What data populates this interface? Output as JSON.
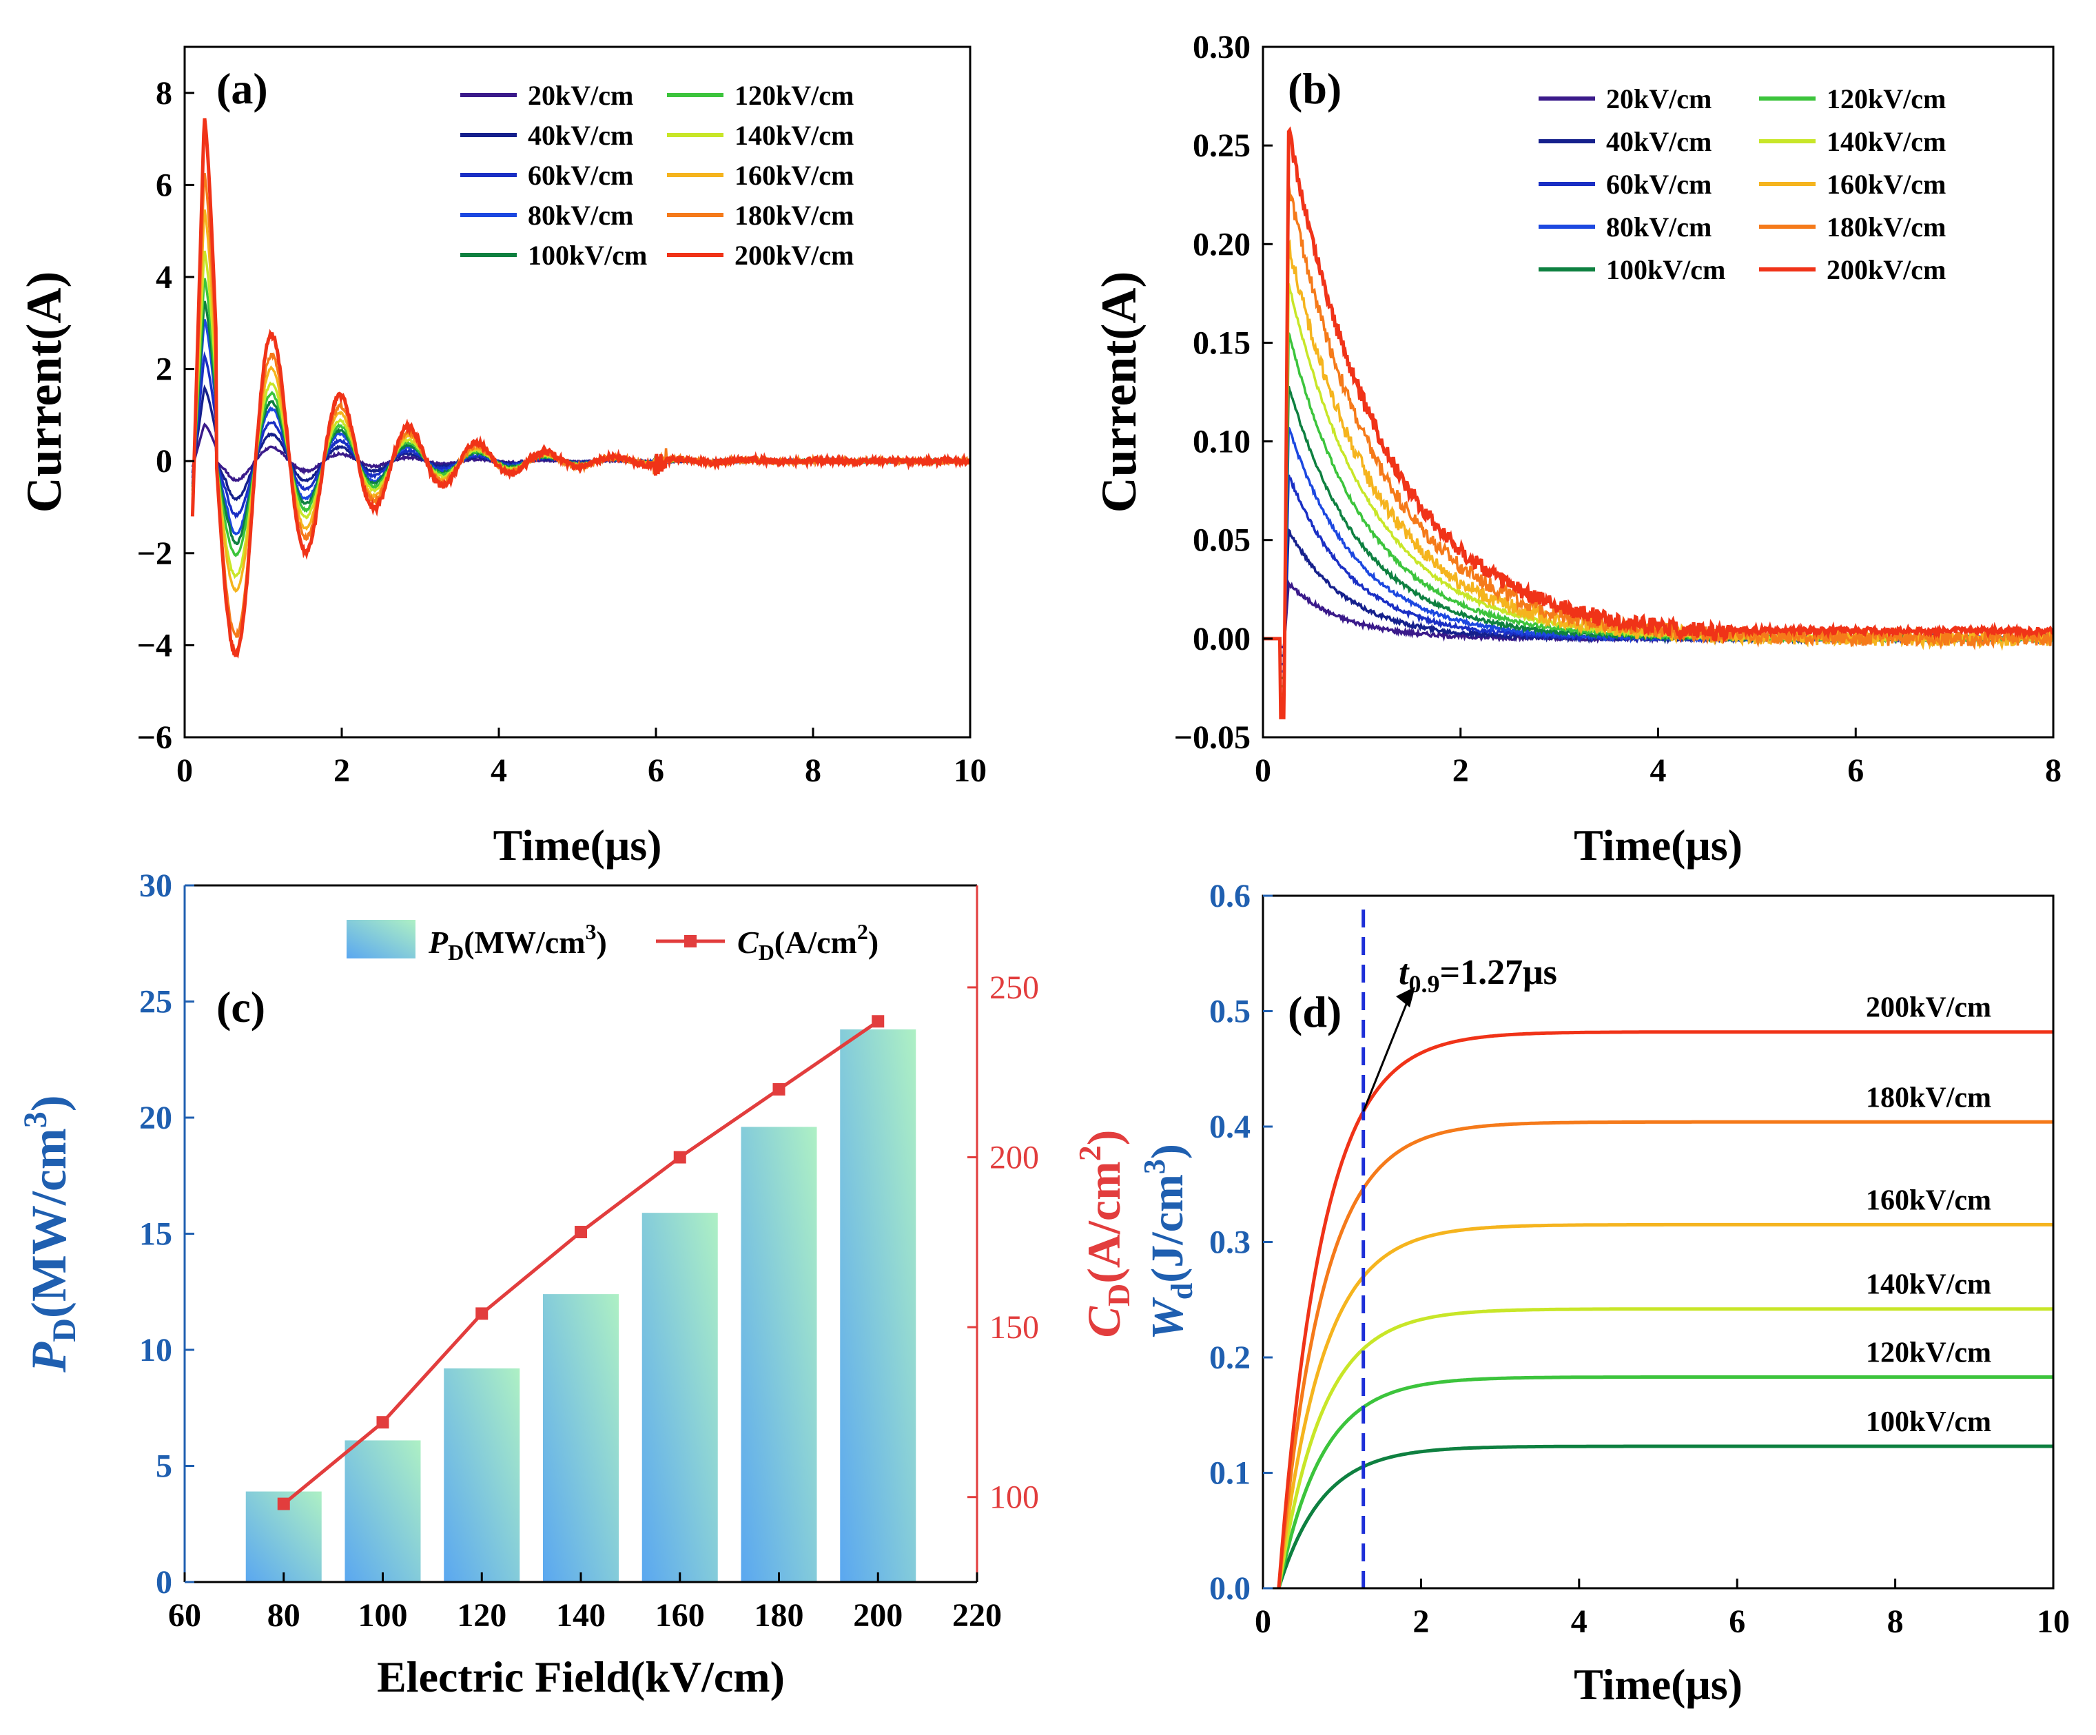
{
  "figure": {
    "colors": {
      "20": "#3a1a8a",
      "40": "#15208c",
      "60": "#1a2fc4",
      "80": "#1c48e0",
      "100": "#0e8040",
      "120": "#3cc43c",
      "140": "#c8e628",
      "160": "#f5b41e",
      "180": "#f57a1a",
      "200": "#f03318",
      "blue_axis": "#1f5fb0",
      "red_axis": "#e23d3d",
      "black": "#000000"
    }
  },
  "chart_data": [
    {
      "id": "a",
      "panel_label": "(a)",
      "type": "line",
      "xlabel": "Time(μs)",
      "ylabel": "Current(A)",
      "xlim": [
        0,
        10
      ],
      "ylim": [
        -6,
        9
      ],
      "xticks": [
        0,
        2,
        4,
        6,
        8,
        10
      ],
      "xtick_labels": [
        "0",
        "2",
        "4",
        "6",
        "8",
        "10"
      ],
      "yticks": [
        -6,
        -4,
        -2,
        0,
        2,
        4,
        6,
        8
      ],
      "ytick_labels": [
        "−6",
        "−4",
        "−2",
        "0",
        "2",
        "4",
        "6",
        "8"
      ],
      "legend": [
        "20kV/cm",
        "40kV/cm",
        "60kV/cm",
        "80kV/cm",
        "100kV/cm",
        "120kV/cm",
        "140kV/cm",
        "160kV/cm",
        "180kV/cm",
        "200kV/cm"
      ],
      "series": [
        {
          "name": "20kV/cm",
          "field": 20,
          "peak": 0.8,
          "trough": -0.3
        },
        {
          "name": "40kV/cm",
          "field": 40,
          "peak": 1.6,
          "trough": -0.6
        },
        {
          "name": "60kV/cm",
          "field": 60,
          "peak": 2.3,
          "trough": -0.9
        },
        {
          "name": "80kV/cm",
          "field": 80,
          "peak": 3.1,
          "trough": -1.3
        },
        {
          "name": "100kV/cm",
          "field": 100,
          "peak": 3.5,
          "trough": -1.6
        },
        {
          "name": "120kV/cm",
          "field": 120,
          "peak": 4.0,
          "trough": -2.0
        },
        {
          "name": "140kV/cm",
          "field": 140,
          "peak": 4.6,
          "trough": -2.5
        },
        {
          "name": "160kV/cm",
          "field": 160,
          "peak": 5.5,
          "trough": -2.8
        },
        {
          "name": "180kV/cm",
          "field": 180,
          "peak": 6.3,
          "trough": -3.8
        },
        {
          "name": "200kV/cm",
          "field": 200,
          "peak": 7.5,
          "trough": -4.2
        }
      ]
    },
    {
      "id": "b",
      "panel_label": "(b)",
      "type": "line",
      "xlabel": "Time(μs)",
      "ylabel": "Current(A)",
      "xlim": [
        0,
        8
      ],
      "ylim": [
        -0.05,
        0.3
      ],
      "xticks": [
        0,
        2,
        4,
        6,
        8
      ],
      "xtick_labels": [
        "0",
        "2",
        "4",
        "6",
        "8"
      ],
      "yticks": [
        -0.05,
        0,
        0.05,
        0.1,
        0.15,
        0.2,
        0.25,
        0.3
      ],
      "ytick_labels": [
        "−0.05",
        "0.00",
        "0.05",
        "0.10",
        "0.15",
        "0.20",
        "0.25",
        "0.30"
      ],
      "legend": [
        "20kV/cm",
        "40kV/cm",
        "60kV/cm",
        "80kV/cm",
        "100kV/cm",
        "120kV/cm",
        "140kV/cm",
        "160kV/cm",
        "180kV/cm",
        "200kV/cm"
      ],
      "series": [
        {
          "name": "20kV/cm",
          "field": 20,
          "peak": 0.028,
          "tau": 0.55
        },
        {
          "name": "40kV/cm",
          "field": 40,
          "peak": 0.055,
          "tau": 0.6
        },
        {
          "name": "60kV/cm",
          "field": 60,
          "peak": 0.083,
          "tau": 0.65
        },
        {
          "name": "80kV/cm",
          "field": 80,
          "peak": 0.107,
          "tau": 0.7
        },
        {
          "name": "100kV/cm",
          "field": 100,
          "peak": 0.128,
          "tau": 0.75
        },
        {
          "name": "120kV/cm",
          "field": 120,
          "peak": 0.155,
          "tau": 0.8
        },
        {
          "name": "140kV/cm",
          "field": 140,
          "peak": 0.18,
          "tau": 0.85
        },
        {
          "name": "160kV/cm",
          "field": 160,
          "peak": 0.2,
          "tau": 0.9
        },
        {
          "name": "180kV/cm",
          "field": 180,
          "peak": 0.23,
          "tau": 0.95
        },
        {
          "name": "200kV/cm",
          "field": 200,
          "peak": 0.257,
          "tau": 1.0
        }
      ]
    },
    {
      "id": "c",
      "panel_label": "(c)",
      "type": "bar",
      "xlabel": "Electric Field(kV/cm)",
      "ylabel_main": "P",
      "ylabel_sub": "D",
      "ylabel_rest": "(MW/cm",
      "ylabel_sup": "3",
      "ylabel_close": ")",
      "y2label_main": "C",
      "y2label_sub": "D",
      "y2label_rest": "(A/cm",
      "y2label_sup": "2",
      "y2label_close": ")",
      "xlim": [
        60,
        220
      ],
      "ylim": [
        0,
        30
      ],
      "y2lim": [
        75,
        280
      ],
      "xticks": [
        60,
        80,
        100,
        120,
        140,
        160,
        180,
        200,
        220
      ],
      "xtick_labels": [
        "60",
        "80",
        "100",
        "120",
        "140",
        "160",
        "180",
        "200",
        "220"
      ],
      "yticks": [
        0,
        5,
        10,
        15,
        20,
        25,
        30
      ],
      "ytick_labels": [
        "0",
        "5",
        "10",
        "15",
        "20",
        "25",
        "30"
      ],
      "y2ticks": [
        100,
        150,
        200,
        250
      ],
      "y2tick_labels": [
        "100",
        "150",
        "200",
        "250"
      ],
      "categories": [
        80,
        100,
        120,
        140,
        160,
        180,
        200
      ],
      "series": [
        {
          "name": "P_D(MW/cm3)",
          "legend_main": "P",
          "legend_sub": "D",
          "legend_rest": "(MW/cm",
          "legend_sup": "3",
          "legend_close": ")",
          "axis": "left",
          "kind": "bar",
          "values": [
            3.9,
            6.1,
            9.2,
            12.4,
            15.9,
            19.6,
            23.8
          ]
        },
        {
          "name": "C_D(A/cm2)",
          "legend_main": "C",
          "legend_sub": "D",
          "legend_rest": "(A/cm",
          "legend_sup": "2",
          "legend_close": ")",
          "axis": "right",
          "kind": "line",
          "values": [
            98,
            122,
            154,
            178,
            200,
            220,
            240
          ]
        }
      ]
    },
    {
      "id": "d",
      "panel_label": "(d)",
      "type": "line",
      "xlabel": "Time(μs)",
      "ylabel_main": "W",
      "ylabel_sub": "d",
      "ylabel_rest": "(J/cm",
      "ylabel_sup": "3",
      "ylabel_close": ")",
      "xlim": [
        0,
        10
      ],
      "ylim": [
        0,
        0.6
      ],
      "xticks": [
        0,
        2,
        4,
        6,
        8,
        10
      ],
      "xtick_labels": [
        "0",
        "2",
        "4",
        "6",
        "8",
        "10"
      ],
      "yticks": [
        0,
        0.1,
        0.2,
        0.3,
        0.4,
        0.5,
        0.6
      ],
      "ytick_labels": [
        "0.0",
        "0.1",
        "0.2",
        "0.3",
        "0.4",
        "0.5",
        "0.6"
      ],
      "vline_x": 1.27,
      "annotation": {
        "main": "t",
        "sub": "0.9",
        "rest": "=1.27μs"
      },
      "series": [
        {
          "name": "100kV/cm",
          "field": 100,
          "final": 0.123,
          "tau": 0.55
        },
        {
          "name": "120kV/cm",
          "field": 120,
          "final": 0.183,
          "tau": 0.55
        },
        {
          "name": "140kV/cm",
          "field": 140,
          "final": 0.242,
          "tau": 0.55
        },
        {
          "name": "160kV/cm",
          "field": 160,
          "final": 0.315,
          "tau": 0.55
        },
        {
          "name": "180kV/cm",
          "field": 180,
          "final": 0.404,
          "tau": 0.55
        },
        {
          "name": "200kV/cm",
          "field": 200,
          "final": 0.482,
          "tau": 0.55
        }
      ]
    }
  ]
}
